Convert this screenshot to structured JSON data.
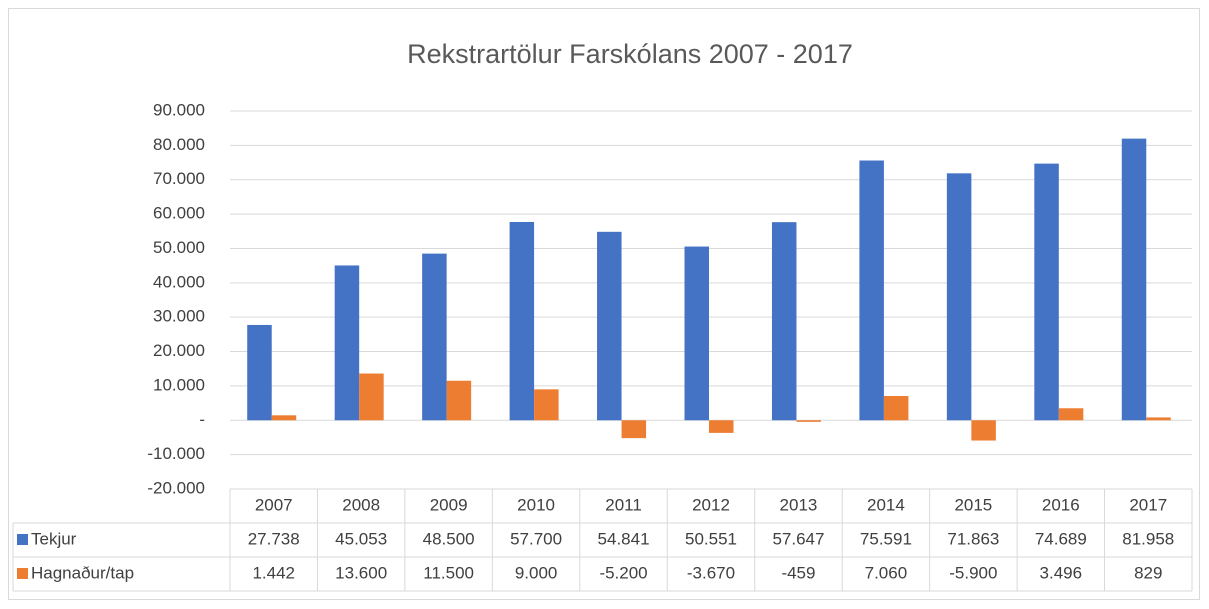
{
  "chart_data": {
    "type": "bar",
    "title": "Rekstrartölur Farskólans 2007 - 2017",
    "categories": [
      "2007",
      "2008",
      "2009",
      "2010",
      "2011",
      "2012",
      "2013",
      "2014",
      "2015",
      "2016",
      "2017"
    ],
    "series": [
      {
        "name": "Tekjur",
        "color": "#4472c4",
        "values": [
          27738,
          45053,
          48500,
          57700,
          54841,
          50551,
          57647,
          75591,
          71863,
          74689,
          81958
        ],
        "value_labels": [
          "27.738",
          "45.053",
          "48.500",
          "57.700",
          "54.841",
          "50.551",
          "57.647",
          "75.591",
          "71.863",
          "74.689",
          "81.958"
        ]
      },
      {
        "name": "Hagnaður/tap",
        "color": "#ed7d31",
        "values": [
          1442,
          13600,
          11500,
          9000,
          -5200,
          -3670,
          -459,
          7060,
          -5900,
          3496,
          829
        ],
        "value_labels": [
          "1.442",
          "13.600",
          "11.500",
          "9.000",
          "-5.200",
          "-3.670",
          "-459",
          "7.060",
          "-5.900",
          "3.496",
          "829"
        ]
      }
    ],
    "ylim": [
      -20000,
      90000
    ],
    "yticks": [
      {
        "value": -20000,
        "label": "-20.000"
      },
      {
        "value": -10000,
        "label": "-10.000"
      },
      {
        "value": 0,
        "label": "-"
      },
      {
        "value": 10000,
        "label": "10.000"
      },
      {
        "value": 20000,
        "label": "20.000"
      },
      {
        "value": 30000,
        "label": "30.000"
      },
      {
        "value": 40000,
        "label": "40.000"
      },
      {
        "value": 50000,
        "label": "50.000"
      },
      {
        "value": 60000,
        "label": "60.000"
      },
      {
        "value": 70000,
        "label": "70.000"
      },
      {
        "value": 80000,
        "label": "80.000"
      },
      {
        "value": 90000,
        "label": "90.000"
      }
    ],
    "grid": true
  }
}
